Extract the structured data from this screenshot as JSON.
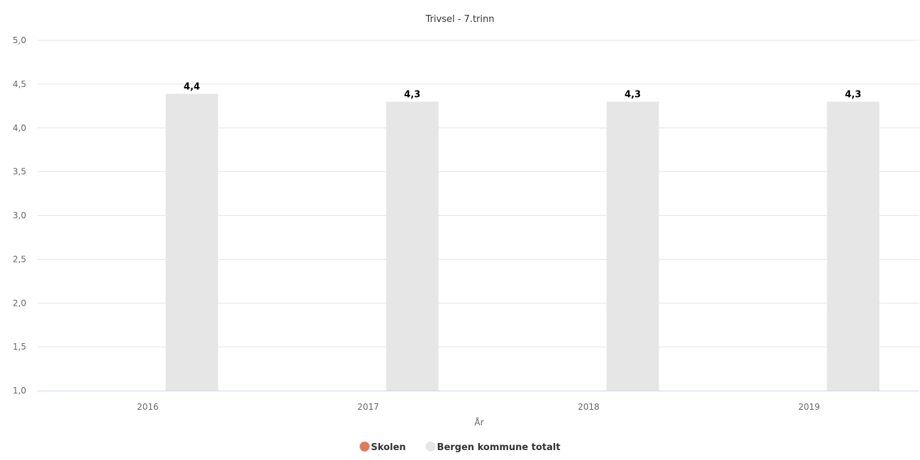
{
  "chart_data": {
    "type": "bar",
    "title": "Trivsel - 7.trinn",
    "xlabel": "År",
    "ylabel": "",
    "categories": [
      "2016",
      "2017",
      "2018",
      "2019"
    ],
    "ylim": [
      1.0,
      5.0
    ],
    "yticks": [
      "1,0",
      "1,5",
      "2,0",
      "2,5",
      "3,0",
      "3,5",
      "4,0",
      "4,5",
      "5,0"
    ],
    "grid": true,
    "legend_position": "bottom-center",
    "series": [
      {
        "name": "Skolen",
        "color": "#e07b5a",
        "values": [
          null,
          null,
          null,
          null
        ],
        "labels": [
          "",
          "",
          "",
          ""
        ]
      },
      {
        "name": "Bergen kommune totalt",
        "color": "#e6e6e6",
        "values": [
          4.39,
          4.3,
          4.3,
          4.3
        ],
        "labels": [
          "4,4",
          "4,3",
          "4,3",
          "4,3"
        ]
      }
    ]
  }
}
